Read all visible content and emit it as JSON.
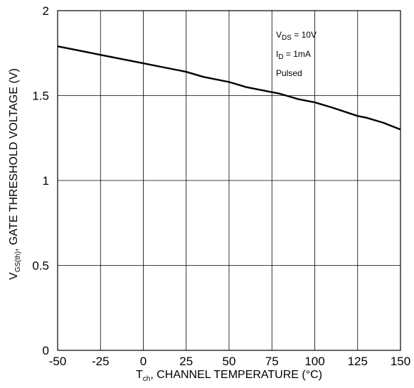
{
  "chart_data": {
    "type": "line",
    "xlim": [
      -50,
      150
    ],
    "ylim": [
      0,
      2
    ],
    "x_ticks": [
      -50,
      -25,
      0,
      25,
      50,
      75,
      100,
      125,
      150
    ],
    "y_ticks": [
      0,
      0.5,
      1,
      1.5,
      2
    ],
    "x_tick_labels": [
      "-50",
      "-25",
      "0",
      "25",
      "50",
      "75",
      "100",
      "125",
      "150"
    ],
    "y_tick_labels": [
      "0",
      "0.5",
      "1",
      "1.5",
      "2"
    ],
    "grid": true,
    "xlabel": {
      "main": "T",
      "sub": "ch",
      "rest": ", CHANNEL TEMPERATURE (°C)"
    },
    "ylabel": {
      "main": "V",
      "sub": "GS(th)",
      "rest": ", GATE THRESHOLD VOLTAGE (V)"
    },
    "annotations": [
      {
        "main": "V",
        "sub": "DS",
        "rest": " = 10V"
      },
      {
        "main": "I",
        "sub": "D",
        "rest": " = 1mA"
      },
      {
        "main": "Pulsed",
        "sub": "",
        "rest": ""
      }
    ],
    "series": [
      {
        "x": [
          -50,
          -40,
          -25,
          -10,
          0,
          10,
          25,
          35,
          50,
          60,
          75,
          80,
          90,
          100,
          110,
          125,
          130,
          140,
          150
        ],
        "y": [
          1.79,
          1.77,
          1.74,
          1.71,
          1.69,
          1.67,
          1.64,
          1.61,
          1.58,
          1.55,
          1.52,
          1.51,
          1.48,
          1.46,
          1.43,
          1.38,
          1.37,
          1.34,
          1.3
        ]
      }
    ]
  }
}
